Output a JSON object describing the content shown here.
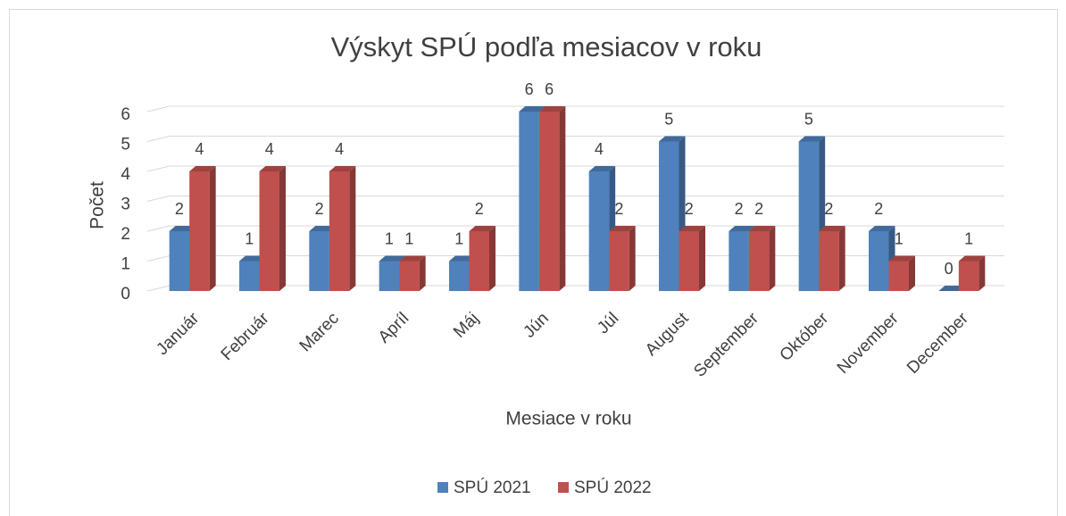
{
  "chart_data": {
    "type": "bar3d",
    "title": "Výskyt SPÚ podľa mesiacov v roku",
    "x_label": "Mesiace v roku",
    "y_label": "Počet",
    "categories": [
      "Január",
      "Február",
      "Marec",
      "Apríl",
      "Máj",
      "Jún",
      "Júl",
      "August",
      "September",
      "Október",
      "November",
      "December"
    ],
    "series": [
      {
        "name": "SPÚ 2021",
        "color": "#4f81bd",
        "values": [
          2,
          1,
          2,
          1,
          1,
          6,
          4,
          5,
          2,
          5,
          2,
          0
        ]
      },
      {
        "name": "SPÚ 2022",
        "color": "#c0504d",
        "values": [
          4,
          4,
          4,
          1,
          2,
          6,
          2,
          2,
          2,
          2,
          1,
          1
        ]
      }
    ],
    "ylim": [
      0,
      6
    ],
    "yticks": [
      0,
      1,
      2,
      3,
      4,
      5,
      6
    ],
    "grid": true,
    "legend": "bottom"
  }
}
